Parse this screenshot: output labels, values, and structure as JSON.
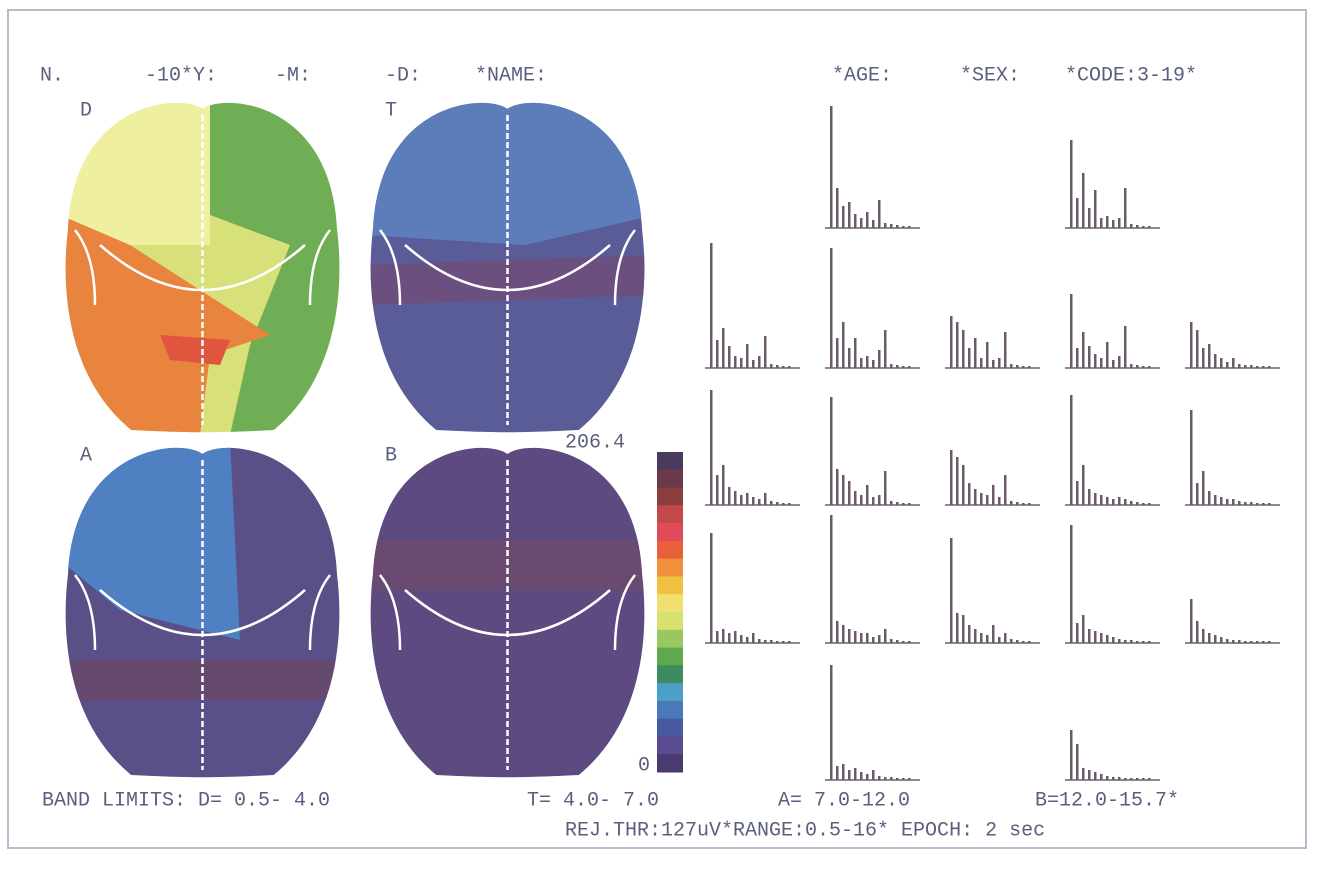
{
  "header": {
    "fields": [
      "N.",
      "-10*Y:",
      "-M:",
      "-D:",
      "*NAME:",
      "*AGE:",
      "*SEX:",
      "*CODE:3-19*"
    ]
  },
  "maps": [
    {
      "label": "D"
    },
    {
      "label": "T"
    },
    {
      "label": "A"
    },
    {
      "label": "B"
    }
  ],
  "color_scale": {
    "max": 206.4,
    "min": 0,
    "colors": [
      "#4a3a5e",
      "#6b3a4a",
      "#8a3e3e",
      "#c24a4a",
      "#e04a5a",
      "#e8603a",
      "#f0903a",
      "#f0c040",
      "#f0e070",
      "#d8e070",
      "#98c860",
      "#60a850",
      "#3c8c60",
      "#4aa0c8",
      "#4a78b8",
      "#4a5aa0",
      "#5a4a90",
      "#4a3a70"
    ]
  },
  "spectra": [
    {
      "bars": [
        122,
        40,
        22,
        26,
        14,
        10,
        16,
        8,
        28,
        5,
        4,
        3,
        2,
        2
      ]
    },
    {
      "bars": [
        88,
        30,
        55,
        20,
        38,
        10,
        12,
        8,
        10,
        40,
        4,
        3,
        2,
        2
      ]
    },
    {
      "bars": [
        125,
        28,
        40,
        22,
        12,
        10,
        24,
        8,
        12,
        32,
        4,
        3,
        2,
        2
      ]
    },
    {
      "bars": [
        120,
        30,
        46,
        20,
        30,
        10,
        12,
        8,
        18,
        38,
        4,
        3,
        2,
        2
      ]
    },
    {
      "bars": [
        52,
        46,
        38,
        20,
        30,
        10,
        26,
        8,
        10,
        36,
        4,
        3,
        2,
        2
      ]
    },
    {
      "bars": [
        74,
        20,
        36,
        22,
        14,
        10,
        26,
        8,
        12,
        42,
        4,
        3,
        2,
        2
      ]
    },
    {
      "bars": [
        46,
        38,
        20,
        24,
        14,
        10,
        6,
        10,
        4,
        3,
        3,
        2,
        2,
        2
      ]
    },
    {
      "bars": [
        115,
        30,
        40,
        18,
        14,
        10,
        12,
        8,
        6,
        12,
        4,
        3,
        2,
        2
      ]
    },
    {
      "bars": [
        108,
        36,
        30,
        24,
        14,
        10,
        20,
        8,
        10,
        34,
        4,
        3,
        2,
        2
      ]
    },
    {
      "bars": [
        55,
        48,
        40,
        22,
        16,
        12,
        10,
        20,
        8,
        30,
        4,
        3,
        2,
        2
      ]
    },
    {
      "bars": [
        110,
        24,
        40,
        16,
        12,
        10,
        8,
        6,
        8,
        6,
        4,
        3,
        2,
        2
      ]
    },
    {
      "bars": [
        95,
        22,
        34,
        14,
        10,
        8,
        6,
        6,
        4,
        3,
        3,
        2,
        2,
        2
      ]
    },
    {
      "bars": [
        110,
        12,
        14,
        10,
        12,
        8,
        6,
        10,
        4,
        3,
        3,
        2,
        2,
        2
      ]
    },
    {
      "bars": [
        128,
        22,
        18,
        14,
        12,
        10,
        10,
        6,
        8,
        14,
        4,
        3,
        2,
        2
      ]
    },
    {
      "bars": [
        105,
        30,
        28,
        18,
        14,
        10,
        8,
        18,
        6,
        10,
        4,
        3,
        2,
        2
      ]
    },
    {
      "bars": [
        118,
        20,
        28,
        14,
        12,
        10,
        8,
        6,
        4,
        3,
        3,
        2,
        2,
        2
      ]
    },
    {
      "bars": [
        44,
        22,
        14,
        10,
        8,
        6,
        4,
        3,
        3,
        2,
        2,
        2,
        2,
        2
      ]
    },
    {
      "bars": [
        115,
        14,
        16,
        10,
        12,
        8,
        6,
        10,
        4,
        3,
        3,
        2,
        2,
        2
      ]
    },
    {
      "bars": [
        50,
        36,
        12,
        10,
        8,
        6,
        4,
        3,
        3,
        2,
        2,
        2,
        2,
        2
      ]
    }
  ],
  "footer": {
    "bands": [
      "BAND LIMITS: D= 0.5- 4.0",
      "T= 4.0- 7.0",
      "A= 7.0-12.0",
      "B=12.0-15.7*"
    ],
    "params": "REJ.THR:127uV*RANGE:0.5-16* EPOCH: 2 sec"
  }
}
